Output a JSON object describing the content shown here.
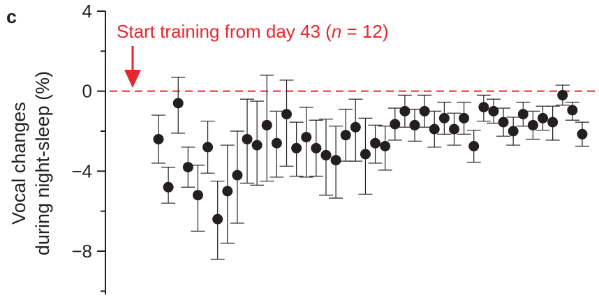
{
  "panel_label": "c",
  "colors": {
    "ink": "#231f20",
    "accent": "#e8262d"
  },
  "chart_data": {
    "type": "scatter",
    "ylabel_line1": "Vocal changes",
    "ylabel_line2": "during night-sleep (%)",
    "xlabel": "",
    "ylim": [
      -10,
      4
    ],
    "yticks": [
      4,
      0,
      -4,
      -8
    ],
    "ytick_labels": [
      "4",
      "0",
      "−4",
      "−8"
    ],
    "grid": false,
    "reference_line": {
      "y": 0,
      "style": "dashed"
    },
    "annotation": {
      "text_before": "Start training from day 43 (",
      "text_italic": "n",
      "text_after": " = 12)",
      "arrow": "down"
    },
    "points": [
      {
        "x": 1,
        "y": -2.4,
        "err_low": 1.2,
        "err_high": 1.2
      },
      {
        "x": 2,
        "y": -4.8,
        "err_low": 0.8,
        "err_high": 1.0
      },
      {
        "x": 3,
        "y": -0.6,
        "err_low": 1.5,
        "err_high": 1.3
      },
      {
        "x": 4,
        "y": -3.8,
        "err_low": 1.0,
        "err_high": 1.0
      },
      {
        "x": 5,
        "y": -5.2,
        "err_low": 1.8,
        "err_high": 1.5
      },
      {
        "x": 6,
        "y": -2.8,
        "err_low": 1.3,
        "err_high": 1.3
      },
      {
        "x": 7,
        "y": -6.4,
        "err_low": 2.0,
        "err_high": 1.9
      },
      {
        "x": 8,
        "y": -5.0,
        "err_low": 2.6,
        "err_high": 2.3
      },
      {
        "x": 9,
        "y": -4.2,
        "err_low": 2.4,
        "err_high": 2.2
      },
      {
        "x": 10,
        "y": -2.4,
        "err_low": 2.2,
        "err_high": 2.0
      },
      {
        "x": 11,
        "y": -2.7,
        "err_low": 2.0,
        "err_high": 2.2
      },
      {
        "x": 12,
        "y": -1.7,
        "err_low": 2.8,
        "err_high": 2.5
      },
      {
        "x": 13,
        "y": -2.6,
        "err_low": 1.7,
        "err_high": 1.6
      },
      {
        "x": 14,
        "y": -1.15,
        "err_low": 2.6,
        "err_high": 1.7
      },
      {
        "x": 15,
        "y": -2.85,
        "err_low": 1.4,
        "err_high": 1.3
      },
      {
        "x": 16,
        "y": -2.3,
        "err_low": 2.0,
        "err_high": 1.5
      },
      {
        "x": 17,
        "y": -2.85,
        "err_low": 1.4,
        "err_high": 1.4
      },
      {
        "x": 18,
        "y": -3.2,
        "err_low": 2.0,
        "err_high": 1.8
      },
      {
        "x": 19,
        "y": -3.45,
        "err_low": 1.9,
        "err_high": 1.7
      },
      {
        "x": 20,
        "y": -2.2,
        "err_low": 1.3,
        "err_high": 1.3
      },
      {
        "x": 21,
        "y": -1.8,
        "err_low": 1.7,
        "err_high": 1.4
      },
      {
        "x": 22,
        "y": -3.15,
        "err_low": 2.0,
        "err_high": 1.8
      },
      {
        "x": 23,
        "y": -2.6,
        "err_low": 1.0,
        "err_high": 0.9
      },
      {
        "x": 24,
        "y": -2.75,
        "err_low": 1.2,
        "err_high": 1.0
      },
      {
        "x": 25,
        "y": -1.65,
        "err_low": 0.8,
        "err_high": 0.8
      },
      {
        "x": 26,
        "y": -1.0,
        "err_low": 0.8,
        "err_high": 0.8
      },
      {
        "x": 27,
        "y": -1.7,
        "err_low": 0.8,
        "err_high": 0.8
      },
      {
        "x": 28,
        "y": -1.0,
        "err_low": 0.8,
        "err_high": 0.8
      },
      {
        "x": 29,
        "y": -1.9,
        "err_low": 0.9,
        "err_high": 0.9
      },
      {
        "x": 30,
        "y": -1.35,
        "err_low": 0.8,
        "err_high": 0.8
      },
      {
        "x": 31,
        "y": -1.9,
        "err_low": 0.8,
        "err_high": 0.8
      },
      {
        "x": 32,
        "y": -1.35,
        "err_low": 0.8,
        "err_high": 0.8
      },
      {
        "x": 33,
        "y": -2.75,
        "err_low": 0.8,
        "err_high": 0.8
      },
      {
        "x": 34,
        "y": -0.8,
        "err_low": 0.7,
        "err_high": 0.6
      },
      {
        "x": 35,
        "y": -1.0,
        "err_low": 0.6,
        "err_high": 0.6
      },
      {
        "x": 36,
        "y": -1.55,
        "err_low": 0.7,
        "err_high": 0.7
      },
      {
        "x": 37,
        "y": -2.0,
        "err_low": 0.7,
        "err_high": 0.7
      },
      {
        "x": 38,
        "y": -1.15,
        "err_low": 0.6,
        "err_high": 0.6
      },
      {
        "x": 39,
        "y": -1.7,
        "err_low": 0.7,
        "err_high": 0.7
      },
      {
        "x": 40,
        "y": -1.35,
        "err_low": 0.6,
        "err_high": 0.6
      },
      {
        "x": 41,
        "y": -1.55,
        "err_low": 0.9,
        "err_high": 0.8
      },
      {
        "x": 42,
        "y": -0.2,
        "err_low": 0.5,
        "err_high": 0.5
      },
      {
        "x": 43,
        "y": -0.95,
        "err_low": 0.5,
        "err_high": 0.4
      },
      {
        "x": 44,
        "y": -2.15,
        "err_low": 0.6,
        "err_high": 0.6
      }
    ]
  }
}
